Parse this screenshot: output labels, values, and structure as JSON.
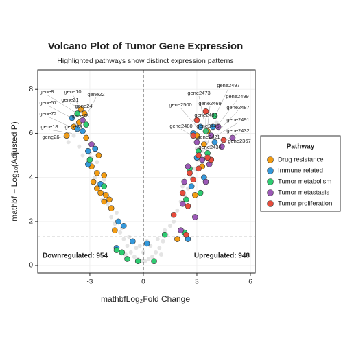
{
  "chart_data": {
    "type": "scatter",
    "title": "Volcano Plot of Tumor Gene Expression",
    "subtitle": "Highlighted pathways show distinct expression patterns",
    "xlabel": "mathbfLog₂Fold Change",
    "ylabel": "mathbf − Log₁₀(Adjusted P)",
    "xlim": [
      -5.92,
      6.27
    ],
    "ylim": [
      -0.34,
      8.88
    ],
    "xticks": [
      -3,
      0,
      3,
      6
    ],
    "yticks": [
      0,
      2,
      4,
      6,
      8
    ],
    "grid": true,
    "thresholds": {
      "x": 0,
      "y": 1.3
    },
    "background": {
      "color": "#d9d9d9",
      "x": [
        -4.2,
        -3.9,
        -3.6,
        -3.4,
        -3.1,
        -2.9,
        -2.7,
        -2.5,
        -2.3,
        -2.0,
        -1.8,
        -1.6,
        -1.3,
        -1.1,
        -0.9,
        -0.7,
        -0.5,
        -0.3,
        -0.1,
        0.1,
        0.3,
        0.5,
        0.7,
        0.9,
        1.1,
        1.3,
        1.5,
        1.7,
        1.9,
        2.1,
        2.3,
        2.5,
        2.7,
        2.9,
        3.1,
        3.3,
        3.5,
        3.7,
        3.9,
        4.1,
        -0.4,
        0.4,
        -0.8,
        0.8,
        -1.2,
        1.2,
        -2.6,
        -3.0,
        3.0,
        2.6,
        -1.0,
        1.0,
        0.0,
        -0.2,
        0.2,
        -3.8,
        3.8,
        -2.2,
        2.2,
        -1.5
      ],
      "y": [
        5.6,
        5.9,
        5.4,
        5.0,
        4.6,
        4.9,
        4.0,
        3.6,
        3.0,
        2.8,
        2.2,
        1.9,
        1.5,
        1.2,
        0.9,
        0.6,
        0.4,
        0.3,
        0.2,
        0.2,
        0.3,
        0.4,
        0.6,
        0.8,
        1.1,
        1.4,
        1.8,
        2.0,
        2.5,
        2.9,
        3.2,
        3.5,
        4.0,
        4.4,
        4.8,
        5.2,
        5.6,
        6.0,
        6.2,
        6.5,
        0.8,
        0.9,
        1.3,
        1.2,
        1.7,
        1.6,
        4.7,
        5.1,
        5.3,
        4.2,
        0.5,
        0.5,
        0.6,
        0.9,
        1.1,
        6.4,
        5.4,
        3.9,
        3.6,
        2.4
      ]
    },
    "series": [
      {
        "name": "Drug resistance",
        "color": "#f39c12",
        "x": [
          -4.3,
          -3.9,
          -3.5,
          -3.3,
          -3.6,
          -3.2,
          -2.9,
          -2.6,
          -2.2,
          -2.8,
          -2.6,
          -2.4,
          -2.1,
          -2.2,
          -1.8,
          -1.9,
          -2.5,
          -1.6,
          3.6,
          3.0,
          3.3,
          2.9,
          3.4,
          1.9
        ],
        "y": [
          5.9,
          6.3,
          7.1,
          6.9,
          6.5,
          5.8,
          4.5,
          4.2,
          4.1,
          3.8,
          3.5,
          3.3,
          3.2,
          2.9,
          2.6,
          3.0,
          5.0,
          1.6,
          6.1,
          5.9,
          4.5,
          3.2,
          5.5,
          1.2
        ]
      },
      {
        "name": "Immune related",
        "color": "#3498db",
        "x": [
          -4.0,
          -3.7,
          -3.4,
          -3.1,
          -2.7,
          -3.1,
          -2.4,
          -1.4,
          -1.1,
          -0.6,
          -1.5,
          0.2,
          2.8,
          3.2,
          3.9,
          3.0,
          3.4,
          2.7,
          4.0,
          2.5
        ],
        "y": [
          6.7,
          6.2,
          6.1,
          5.2,
          5.3,
          4.6,
          3.7,
          2.0,
          1.8,
          1.1,
          0.8,
          1.0,
          6.0,
          6.3,
          6.3,
          4.9,
          4.0,
          3.6,
          5.6,
          1.2
        ]
      },
      {
        "name": "Tumor metabolism",
        "color": "#2ecc71",
        "x": [
          -3.7,
          -3.2,
          -3.0,
          -2.2,
          -1.5,
          -0.9,
          -1.2,
          -0.3,
          0.6,
          1.2,
          2.3,
          2.4,
          2.6,
          3.1,
          3.6,
          4.0,
          3.5,
          3.2
        ],
        "y": [
          6.9,
          6.4,
          4.8,
          3.6,
          0.7,
          0.3,
          0.6,
          0.2,
          0.2,
          1.4,
          1.5,
          3.0,
          4.4,
          5.2,
          5.1,
          6.8,
          6.1,
          3.3
        ]
      },
      {
        "name": "Tumor metastasis",
        "color": "#9b59b6",
        "x": [
          -3.4,
          -2.9,
          2.2,
          2.3,
          2.5,
          3.0,
          3.3,
          3.8,
          4.2,
          5.0,
          3.5,
          2.9,
          2.1,
          3.7,
          4.4
        ],
        "y": [
          6.6,
          5.5,
          2.8,
          3.8,
          4.5,
          5.6,
          4.8,
          5.9,
          6.3,
          5.8,
          3.8,
          2.2,
          1.6,
          4.6,
          5.4
        ]
      },
      {
        "name": "Tumor proliferation",
        "color": "#e74c3c",
        "x": [
          3.0,
          3.5,
          2.8,
          3.1,
          3.8,
          2.6,
          2.2,
          2.5,
          1.7,
          2.8,
          3.6,
          4.5,
          2.4,
          3.1
        ],
        "y": [
          6.6,
          7.0,
          5.9,
          5.0,
          4.8,
          4.2,
          3.3,
          2.7,
          2.3,
          3.9,
          4.9,
          5.7,
          1.4,
          4.4
        ]
      }
    ],
    "gene_labels": [
      {
        "text": "gene21",
        "x": -3.5,
        "y": 7.1
      },
      {
        "text": "gene8",
        "x": -3.7,
        "y": 6.9
      },
      {
        "text": "gene10",
        "x": -3.4,
        "y": 6.9
      },
      {
        "text": "gene22",
        "x": -3.2,
        "y": 6.8
      },
      {
        "text": "gene57",
        "x": -4.0,
        "y": 6.7
      },
      {
        "text": "gene24",
        "x": -3.3,
        "y": 6.5
      },
      {
        "text": "gene72",
        "x": -4.1,
        "y": 6.3
      },
      {
        "text": "gene78",
        "x": -3.5,
        "y": 6.2
      },
      {
        "text": "gene18",
        "x": -4.0,
        "y": 6.0
      },
      {
        "text": "gene29",
        "x": -3.6,
        "y": 6.1
      },
      {
        "text": "gene26",
        "x": -4.3,
        "y": 5.9
      },
      {
        "text": "gene2497",
        "x": 4.1,
        "y": 6.9
      },
      {
        "text": "gene2473",
        "x": 3.4,
        "y": 6.6
      },
      {
        "text": "gene2499",
        "x": 4.2,
        "y": 6.4
      },
      {
        "text": "gene2469",
        "x": 3.6,
        "y": 6.3
      },
      {
        "text": "gene2500",
        "x": 3.0,
        "y": 6.3
      },
      {
        "text": "gene2487",
        "x": 4.2,
        "y": 6.1
      },
      {
        "text": "gene2408",
        "x": 3.5,
        "y": 6.0
      },
      {
        "text": "gene2491",
        "x": 4.1,
        "y": 5.9
      },
      {
        "text": "gene2480",
        "x": 2.9,
        "y": 5.8
      },
      {
        "text": "gene2446",
        "x": 3.5,
        "y": 5.8
      },
      {
        "text": "gene2432",
        "x": 4.4,
        "y": 5.6
      },
      {
        "text": "gene2421",
        "x": 3.6,
        "y": 5.5
      },
      {
        "text": "gene2367",
        "x": 5.0,
        "y": 5.8
      },
      {
        "text": "gene2436",
        "x": 3.4,
        "y": 5.3
      }
    ],
    "annotations": [
      {
        "text": "Downregulated: 954",
        "color": "#2e86c1"
      },
      {
        "text": "Upregulated: 948",
        "color": "#e03a2a"
      }
    ],
    "legend": {
      "title": "Pathway",
      "position": "right"
    }
  }
}
